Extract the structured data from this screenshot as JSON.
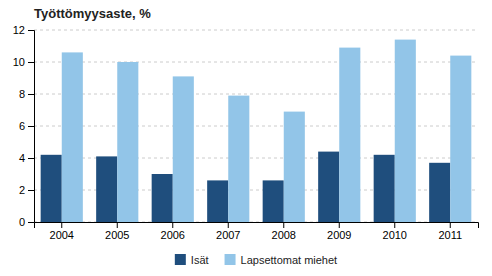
{
  "chart_data": {
    "type": "bar",
    "title": "Työttömyysaste, %",
    "categories": [
      "2004",
      "2005",
      "2006",
      "2007",
      "2008",
      "2009",
      "2010",
      "2011"
    ],
    "series": [
      {
        "name": "Isät",
        "color": "#1f4e7d",
        "values": [
          4.2,
          4.1,
          3.0,
          2.6,
          2.6,
          4.4,
          4.2,
          3.7
        ]
      },
      {
        "name": "Lapsettomat miehet",
        "color": "#92c5e8",
        "values": [
          10.6,
          10.0,
          9.1,
          7.9,
          6.9,
          10.9,
          11.4,
          10.4
        ]
      }
    ],
    "ylim": [
      0,
      12
    ],
    "yticks": [
      0,
      2,
      4,
      6,
      8,
      10,
      12
    ],
    "grid": true,
    "legend": "bottom"
  }
}
